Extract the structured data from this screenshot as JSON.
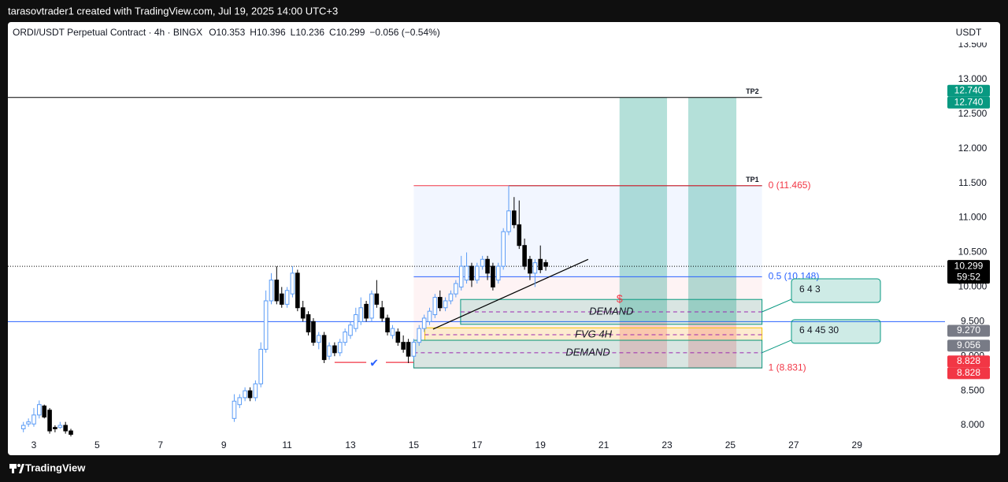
{
  "header": {
    "credit": "tarasovtrader1 created with TradingView.com, Jul 19, 2025 14:00 UTC+3",
    "brand": "TradingView"
  },
  "chart_data": {
    "type": "candlestick",
    "title": "ORDI/USDT Perpetual Contract · 4h · BINGX",
    "legend_labels": {
      "open": "O",
      "high": "H",
      "low": "L",
      "close": "C"
    },
    "change": "−0.056 (−0.54%)",
    "currency": "USDT",
    "countdown": "59:52",
    "up_color": "#ffffff",
    "up_border": "#5b9cf6",
    "down_color": "#000000",
    "x": [
      2.67,
      2.83,
      3,
      3.17,
      3.33,
      3.5,
      3.67,
      3.83,
      4,
      4.17,
      9.33,
      9.5,
      9.67,
      9.83,
      10,
      10.17,
      10.33,
      10.5,
      10.67,
      10.83,
      11,
      11.17,
      11.33,
      11.5,
      11.67,
      11.83,
      12,
      12.17,
      12.33,
      12.5,
      12.67,
      12.83,
      13,
      13.17,
      13.33,
      13.5,
      13.67,
      13.83,
      14,
      14.17,
      14.33,
      14.5,
      14.67,
      14.83,
      15,
      15.17,
      15.33,
      15.5,
      15.67,
      15.83,
      16,
      16.17,
      16.33,
      16.5,
      16.67,
      16.83,
      17,
      17.17,
      17.33,
      17.5,
      17.67,
      17.83,
      18,
      18.17,
      18.33,
      18.5,
      18.67,
      18.83,
      19,
      19.17
    ],
    "open": [
      7.95,
      8.02,
      8.02,
      8.15,
      8.28,
      8.22,
      7.97,
      7.97,
      8.0,
      7.92,
      8.1,
      8.3,
      8.4,
      8.5,
      8.4,
      8.6,
      9.1,
      9.8,
      10.1,
      9.9,
      9.75,
      9.9,
      10.2,
      9.7,
      9.6,
      9.5,
      9.2,
      9.3,
      9.0,
      9.15,
      9.05,
      9.2,
      9.3,
      9.4,
      9.5,
      9.75,
      9.55,
      9.9,
      9.7,
      9.55,
      9.3,
      9.35,
      9.2,
      9.2,
      9.0,
      9.2,
      9.4,
      9.5,
      9.6,
      9.85,
      9.7,
      9.8,
      9.9,
      10.0,
      10.1,
      10.3,
      10.1,
      10.3,
      10.4,
      10.3,
      10.1,
      10.3,
      10.8,
      11.1,
      10.9,
      10.6,
      10.4,
      10.2,
      10.4,
      10.353
    ],
    "high": [
      8.05,
      8.1,
      8.25,
      8.36,
      8.3,
      8.25,
      8.0,
      8.05,
      8.05,
      7.95,
      8.45,
      8.45,
      8.55,
      8.55,
      8.65,
      9.2,
      9.95,
      10.2,
      10.3,
      10.0,
      10.0,
      10.3,
      10.25,
      9.8,
      9.65,
      9.55,
      9.35,
      9.35,
      9.2,
      9.2,
      9.25,
      9.4,
      9.5,
      9.7,
      9.85,
      9.8,
      9.95,
      10.1,
      9.8,
      9.6,
      9.45,
      9.4,
      9.3,
      9.25,
      9.25,
      9.45,
      9.6,
      9.7,
      9.9,
      9.95,
      9.85,
      9.95,
      10.1,
      10.45,
      10.5,
      10.35,
      10.35,
      10.45,
      10.45,
      10.35,
      10.35,
      10.85,
      11.465,
      11.3,
      11.25,
      10.7,
      10.45,
      10.4,
      10.6,
      10.396
    ],
    "low": [
      7.9,
      7.98,
      7.98,
      8.1,
      8.1,
      7.88,
      7.9,
      7.95,
      7.88,
      7.84,
      8.05,
      8.25,
      8.35,
      8.35,
      8.35,
      8.55,
      9.05,
      9.75,
      9.75,
      9.7,
      9.7,
      9.85,
      9.65,
      9.5,
      9.3,
      9.15,
      9.1,
      8.9,
      8.95,
      9.0,
      9.0,
      9.15,
      9.25,
      9.35,
      9.45,
      9.5,
      9.5,
      9.7,
      9.5,
      9.3,
      9.25,
      9.15,
      9.05,
      8.9,
      8.95,
      9.15,
      9.35,
      9.45,
      9.55,
      9.65,
      9.65,
      9.75,
      9.85,
      9.95,
      10.05,
      10.0,
      10.05,
      10.25,
      10.1,
      9.95,
      10.05,
      10.25,
      10.75,
      10.85,
      10.55,
      10.25,
      10.1,
      10.0,
      10.2,
      10.236
    ],
    "close": [
      8.0,
      8.05,
      8.15,
      8.3,
      8.12,
      7.92,
      7.95,
      8.0,
      7.92,
      7.87,
      8.35,
      8.4,
      8.5,
      8.4,
      8.6,
      9.1,
      9.8,
      10.1,
      9.8,
      9.75,
      9.95,
      10.2,
      9.7,
      9.55,
      9.35,
      9.2,
      9.3,
      8.95,
      9.15,
      9.05,
      9.2,
      9.35,
      9.45,
      9.6,
      9.7,
      9.55,
      9.9,
      9.75,
      9.55,
      9.35,
      9.4,
      9.2,
      9.1,
      9.0,
      9.2,
      9.4,
      9.55,
      9.65,
      9.85,
      9.7,
      9.8,
      9.9,
      10.05,
      10.3,
      10.3,
      10.1,
      10.3,
      10.4,
      10.2,
      10.0,
      10.3,
      10.8,
      11.1,
      10.9,
      10.6,
      10.3,
      10.2,
      10.35,
      10.25,
      10.299
    ],
    "xlim": [
      2.18,
      31.78
    ],
    "xticks": [
      3,
      5,
      7,
      9,
      11,
      13,
      15,
      17,
      19,
      21,
      23,
      25,
      27,
      29
    ],
    "ylim": [
      7.83,
      13.83
    ],
    "yticks": [
      {
        "value": 8,
        "label": "8.000"
      },
      {
        "value": 8.5,
        "label": "8.500"
      },
      {
        "value": 9,
        "label": "9.000"
      },
      {
        "value": 9.5,
        "label": "9.500"
      },
      {
        "value": 10,
        "label": "10.000"
      },
      {
        "value": 10.5,
        "label": "10.500"
      },
      {
        "value": 11,
        "label": "11.000"
      },
      {
        "value": 11.5,
        "label": "11.500"
      },
      {
        "value": 12,
        "label": "12.000"
      },
      {
        "value": 12.5,
        "label": "12.500"
      },
      {
        "value": 13,
        "label": "13.000"
      },
      {
        "value": 13.5,
        "label": "13.500"
      }
    ],
    "price_labels": [
      {
        "value": 12.74,
        "label": "12.740",
        "color": "#089981"
      },
      {
        "value": 12.74,
        "label": "12.740",
        "color": "#089981"
      },
      {
        "value": 9.27,
        "label": "9.270",
        "color": "#787b86"
      },
      {
        "value": 9.056,
        "label": "9.056",
        "color": "#787b86"
      },
      {
        "value": 8.828,
        "label": "8.828",
        "color": "#f23645"
      },
      {
        "value": 8.828,
        "label": "8.828",
        "color": "#f23645"
      }
    ],
    "hlines": [
      {
        "value": 9.5,
        "color": "#2962ff"
      },
      {
        "value": 12.74,
        "end": 26.0,
        "label": "TP2",
        "color": "#000000"
      },
      {
        "value": 11.465,
        "start": 18.0,
        "end": 26.0,
        "label": "TP1",
        "color": "#000000"
      }
    ],
    "fib": {
      "start": 15.0,
      "end": 26.0,
      "levels": [
        {
          "value": 11.465,
          "label": "0 (11.465)",
          "color": "#f23645"
        },
        {
          "value": 10.148,
          "label": "0.5 (10.148)",
          "color": "#2962ff"
        },
        {
          "value": 8.831,
          "label": "1 (8.831)",
          "color": "#f23645"
        }
      ]
    },
    "positions": [
      {
        "start": 21.5,
        "end": 23.0,
        "target": 12.74,
        "entry": 9.5,
        "stop": 8.831
      },
      {
        "start": 23.67,
        "end": 25.19,
        "target": 12.74,
        "entry": 9.5,
        "stop": 8.831
      }
    ],
    "zones": [
      {
        "label": "DEMAND",
        "start": 16.48,
        "end": 26.0,
        "top": 9.82,
        "bottom": 9.46,
        "mid": 9.64,
        "color": "#089981",
        "note": "6 4 3"
      },
      {
        "label": "FVG 4H",
        "start": 15.35,
        "end": 26.0,
        "top": 9.41,
        "bottom": 9.23,
        "mid": 9.31,
        "color": "#f5c400"
      },
      {
        "label": "DEMAND",
        "start": 15.0,
        "end": 26.0,
        "top": 9.23,
        "bottom": 8.83,
        "mid": 9.05,
        "color": "#089981",
        "note": "6 4 45 30"
      }
    ],
    "trendline": {
      "x": [
        15.61,
        20.51
      ],
      "y": [
        9.39,
        10.4
      ]
    },
    "swing_lines": [
      {
        "x": [
          12.5,
          13.5
        ],
        "y": 8.91
      },
      {
        "x": [
          14.12,
          15.0
        ],
        "y": 8.91
      }
    ],
    "annotations": [
      {
        "text": "$",
        "x": 21.5,
        "y": 9.82,
        "color": "#f23645"
      },
      {
        "text": "✔",
        "x": 13.75,
        "y": 8.89,
        "color": "#2962ff"
      }
    ]
  }
}
